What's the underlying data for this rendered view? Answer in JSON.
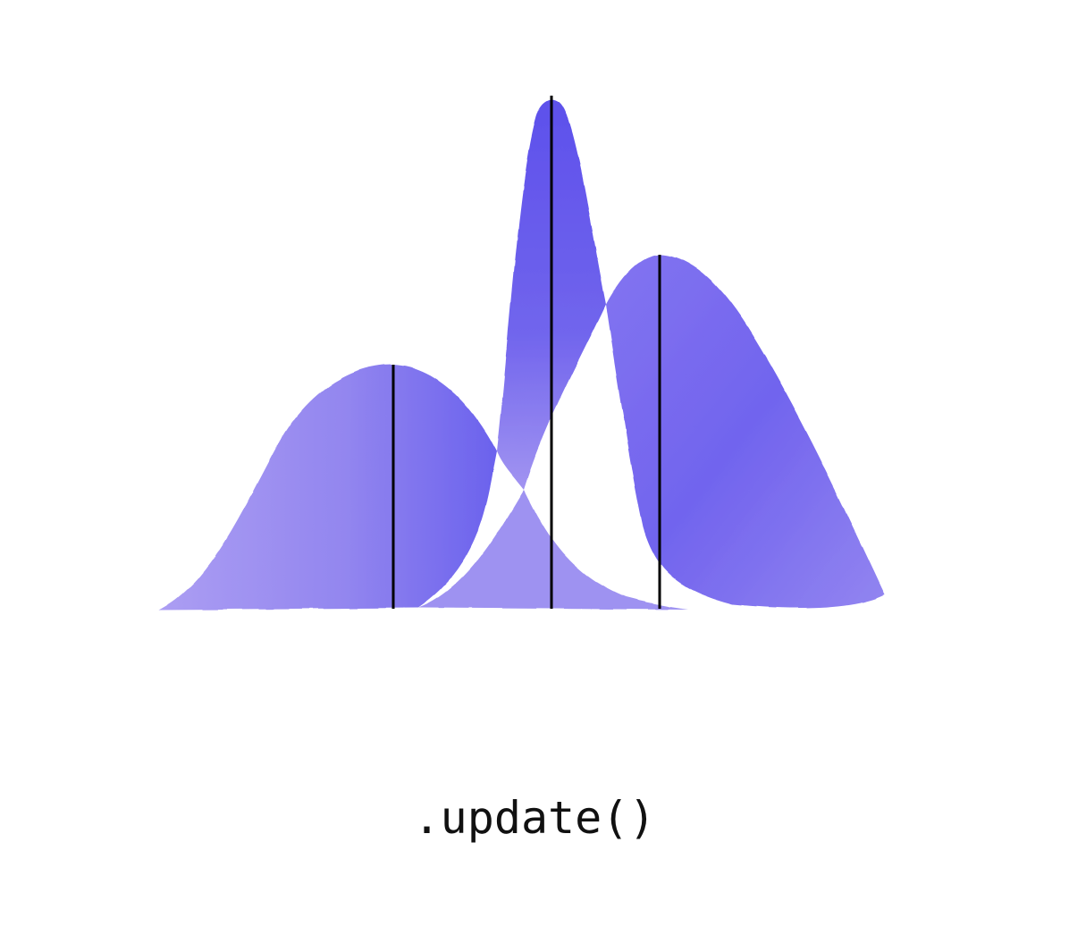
{
  "caption": ".update()",
  "colors": {
    "background": "#ffffff",
    "distribution_fill_light": "#9c8af0",
    "distribution_fill_dark": "#5e52ec",
    "mean_line": "#000000",
    "caption_text": "#111111"
  },
  "distributions": [
    {
      "id": "prior",
      "label": ""
    },
    {
      "id": "likelihood",
      "label": ""
    },
    {
      "id": "posterior",
      "label": ""
    }
  ]
}
